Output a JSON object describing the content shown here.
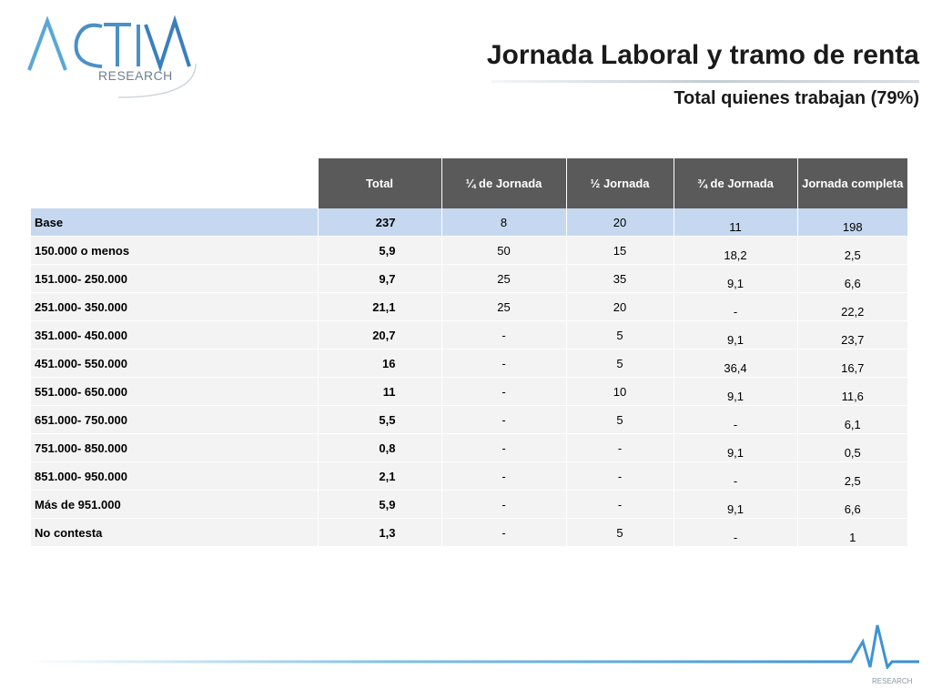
{
  "logo": {
    "main": "ACTIVA",
    "sub": "RESEARCH"
  },
  "title": "Jornada Laboral y tramo de renta",
  "subtitle": "Total quienes trabajan (79%)",
  "table": {
    "headers": [
      "Total",
      "¼ de Jornada",
      "½ Jornada",
      "¾ de Jornada",
      "Jornada completa"
    ],
    "rows": [
      {
        "label": "Base",
        "total": "237",
        "q1": "8",
        "q2": "20",
        "q3": "11",
        "full": "198"
      },
      {
        "label": "150.000 o menos",
        "total": "5,9",
        "q1": "50",
        "q2": "15",
        "q3": "18,2",
        "full": "2,5"
      },
      {
        "label": "151.000- 250.000",
        "total": "9,7",
        "q1": "25",
        "q2": "35",
        "q3": "9,1",
        "full": "6,6"
      },
      {
        "label": "251.000- 350.000",
        "total": "21,1",
        "q1": "25",
        "q2": "20",
        "q3": "-",
        "full": "22,2"
      },
      {
        "label": "351.000- 450.000",
        "total": "20,7",
        "q1": "-",
        "q2": "5",
        "q3": "9,1",
        "full": "23,7"
      },
      {
        "label": "451.000- 550.000",
        "total": "16",
        "q1": "-",
        "q2": "5",
        "q3": "36,4",
        "full": "16,7"
      },
      {
        "label": "551.000- 650.000",
        "total": "11",
        "q1": "-",
        "q2": "10",
        "q3": "9,1",
        "full": "11,6"
      },
      {
        "label": "651.000- 750.000",
        "total": "5,5",
        "q1": "-",
        "q2": "5",
        "q3": "-",
        "full": "6,1"
      },
      {
        "label": "751.000- 850.000",
        "total": "0,8",
        "q1": "-",
        "q2": "-",
        "q3": "9,1",
        "full": "0,5"
      },
      {
        "label": "851.000- 950.000",
        "total": "2,1",
        "q1": "-",
        "q2": "-",
        "q3": "-",
        "full": "2,5"
      },
      {
        "label": "Más de 951.000",
        "total": "5,9",
        "q1": "-",
        "q2": "-",
        "q3": "9,1",
        "full": "6,6"
      },
      {
        "label": "No contesta",
        "total": "1,3",
        "q1": "-",
        "q2": "5",
        "q3": "-",
        "full": "1"
      }
    ]
  },
  "footer_logo": {
    "sub": "RESEARCH"
  },
  "colors": {
    "header_bg": "#5a5a5a",
    "base_row_bg": "#c5d8f0",
    "row_bg": "#f3f3f3",
    "logo_blue": "#4a90c8"
  }
}
